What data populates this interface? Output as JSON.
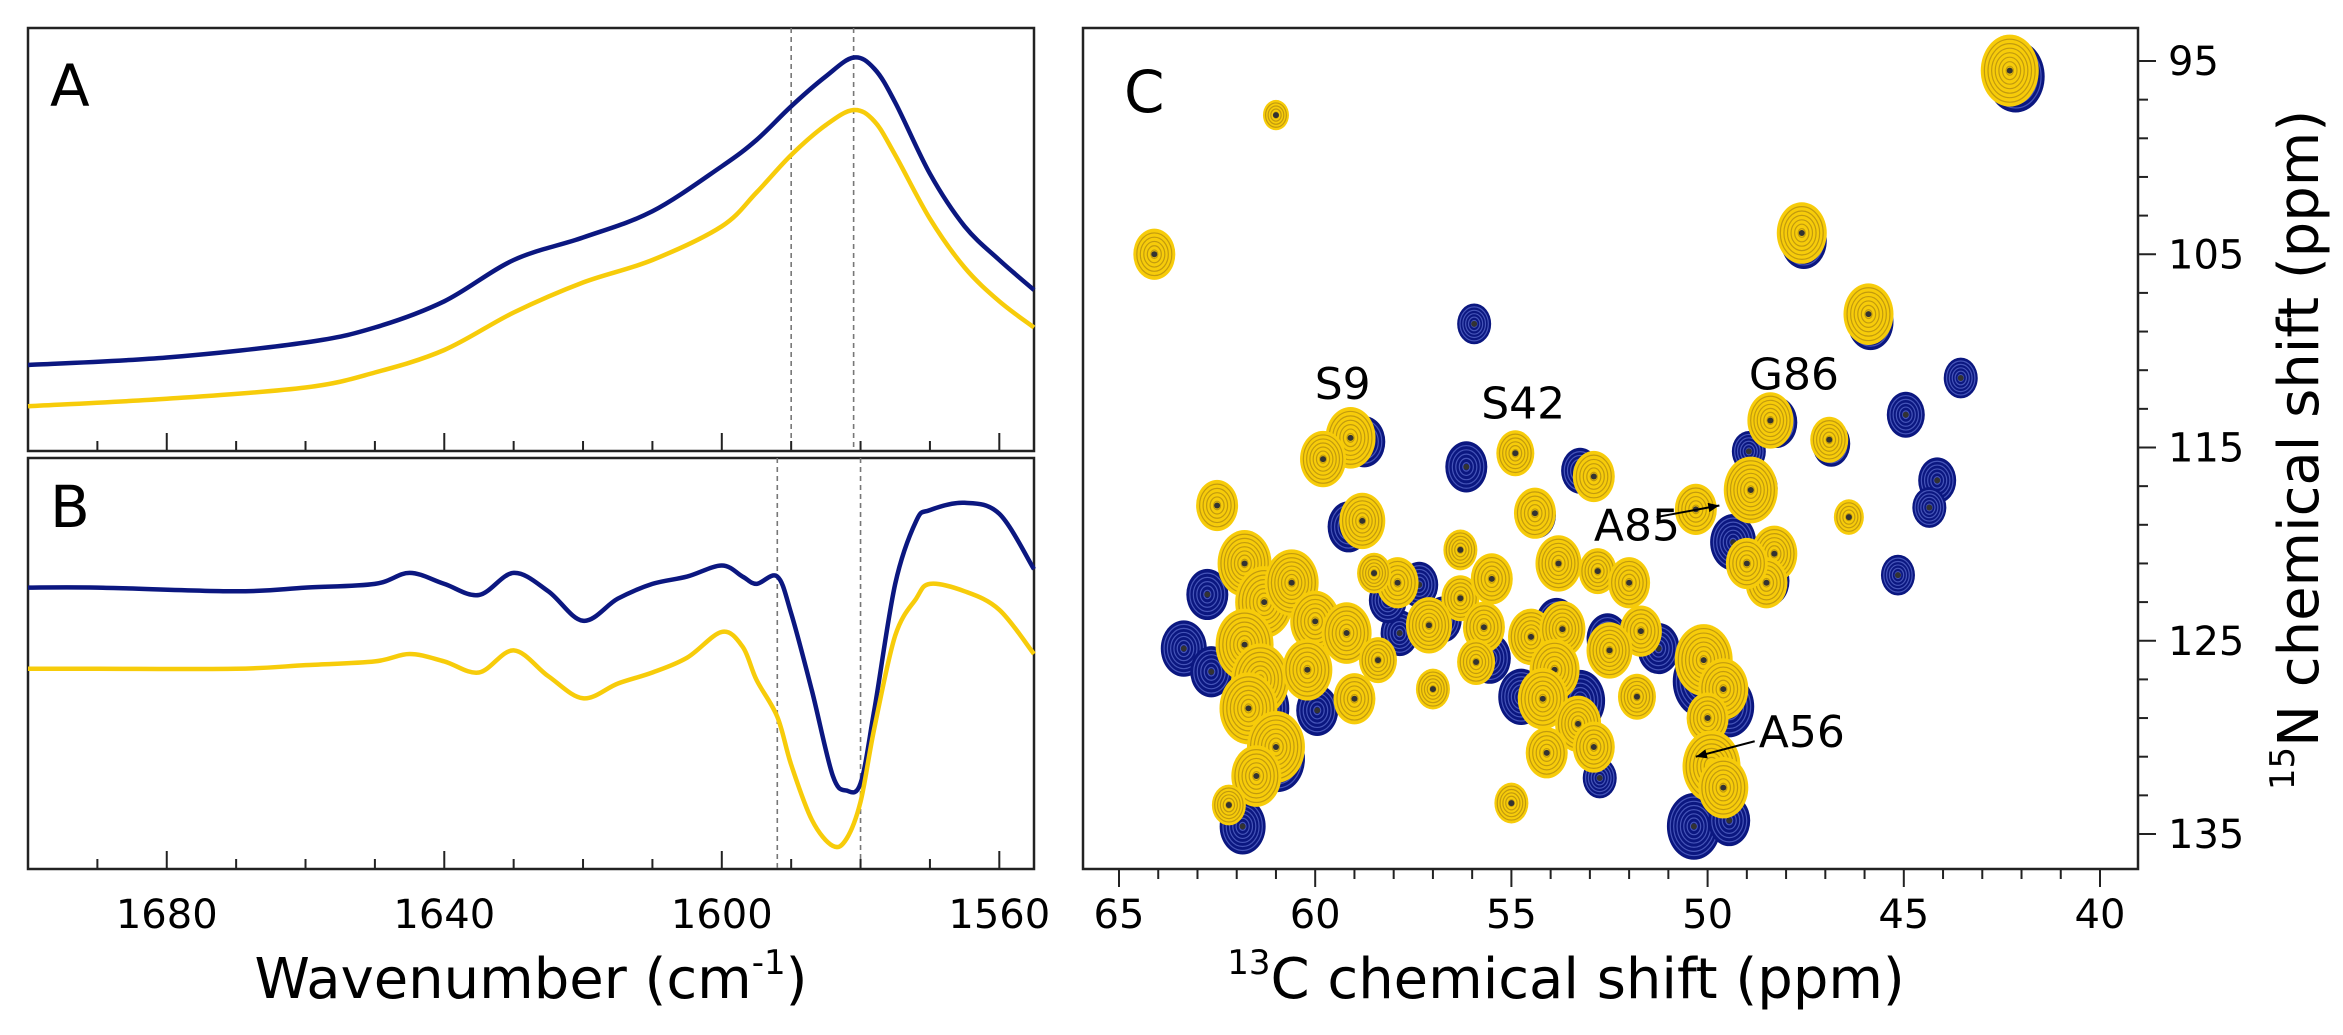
{
  "colors": {
    "navy": "#0b1780",
    "gold": "#f7cc0a",
    "guide": "#777777",
    "frame": "#222222"
  },
  "chart_data": [
    {
      "panel": "A",
      "type": "line",
      "xlabel": "Wavenumber (cm",
      "xlabel_sup": "-1",
      "xlabel_tail": ")",
      "xlim": [
        1700,
        1555
      ],
      "ylim": [
        0,
        1
      ],
      "guide_lines": [
        1590,
        1581
      ],
      "series": [
        {
          "name": "navy",
          "color": "#0b1780",
          "x": [
            1700,
            1680,
            1660,
            1650,
            1640,
            1630,
            1620,
            1610,
            1600,
            1595,
            1590,
            1585,
            1581,
            1578,
            1575,
            1570,
            1565,
            1560,
            1555
          ],
          "y": [
            0.16,
            0.18,
            0.22,
            0.26,
            0.33,
            0.44,
            0.5,
            0.57,
            0.69,
            0.76,
            0.85,
            0.93,
            0.98,
            0.95,
            0.86,
            0.67,
            0.53,
            0.44,
            0.36
          ]
        },
        {
          "name": "gold",
          "color": "#f7cc0a",
          "x": [
            1700,
            1680,
            1660,
            1650,
            1640,
            1630,
            1620,
            1610,
            1600,
            1595,
            1590,
            1585,
            1581,
            1578,
            1575,
            1570,
            1565,
            1560,
            1555
          ],
          "y": [
            0.05,
            0.07,
            0.1,
            0.14,
            0.2,
            0.3,
            0.38,
            0.44,
            0.53,
            0.62,
            0.72,
            0.8,
            0.84,
            0.81,
            0.72,
            0.55,
            0.42,
            0.33,
            0.26
          ]
        }
      ]
    },
    {
      "panel": "B",
      "type": "line",
      "xlim": [
        1700,
        1555
      ],
      "ylim": [
        0,
        1
      ],
      "xticks": [
        1680,
        1640,
        1600,
        1560
      ],
      "xtick_labels": [
        "1680",
        "1640",
        "1600",
        "1560"
      ],
      "guide_lines": [
        1592,
        1580
      ],
      "series": [
        {
          "name": "navy",
          "color": "#0b1780",
          "x": [
            1700,
            1690,
            1670,
            1660,
            1650,
            1645,
            1640,
            1635,
            1630,
            1625,
            1620,
            1615,
            1610,
            1605,
            1600,
            1597,
            1595,
            1592,
            1590,
            1587,
            1584,
            1582,
            1580,
            1578,
            1575,
            1572,
            1570,
            1565,
            1560,
            1555
          ],
          "y": [
            0.73,
            0.73,
            0.72,
            0.73,
            0.74,
            0.77,
            0.74,
            0.71,
            0.77,
            0.72,
            0.64,
            0.7,
            0.74,
            0.76,
            0.79,
            0.76,
            0.74,
            0.76,
            0.66,
            0.45,
            0.22,
            0.18,
            0.2,
            0.4,
            0.74,
            0.91,
            0.94,
            0.96,
            0.93,
            0.78
          ]
        },
        {
          "name": "gold",
          "color": "#f7cc0a",
          "x": [
            1700,
            1690,
            1670,
            1660,
            1650,
            1645,
            1640,
            1635,
            1630,
            1625,
            1620,
            1615,
            1610,
            1605,
            1600,
            1597,
            1595,
            1592,
            1590,
            1587,
            1584,
            1582,
            1580,
            1578,
            1575,
            1572,
            1570,
            1565,
            1560,
            1555
          ],
          "y": [
            0.51,
            0.51,
            0.51,
            0.52,
            0.53,
            0.55,
            0.53,
            0.5,
            0.56,
            0.49,
            0.43,
            0.47,
            0.5,
            0.54,
            0.61,
            0.57,
            0.48,
            0.38,
            0.25,
            0.1,
            0.03,
            0.05,
            0.15,
            0.35,
            0.6,
            0.7,
            0.74,
            0.72,
            0.67,
            0.55
          ]
        }
      ]
    },
    {
      "panel": "C",
      "type": "scatter",
      "xlabel": "C chemical shift (ppm)",
      "xlabel_sup": "13",
      "ylabel": "N chemical shift (ppm)",
      "ylabel_sup": "15",
      "xlim": [
        66,
        40
      ],
      "ylim": [
        94,
        137
      ],
      "xticks": [
        65,
        60,
        55,
        50,
        45,
        40
      ],
      "xtick_labels": [
        "65",
        "60",
        "55",
        "50",
        "45",
        "40"
      ],
      "yticks": [
        95,
        105,
        115,
        125,
        135
      ],
      "ytick_labels": [
        "95",
        "105",
        "115",
        "125",
        "135"
      ],
      "annotations": [
        {
          "text": "S9",
          "x": 59.3,
          "y": 112.5
        },
        {
          "text": "S42",
          "x": 54.7,
          "y": 113.5
        },
        {
          "text": "G86",
          "x": 47.8,
          "y": 112.0
        },
        {
          "text": "A85",
          "x": 51.8,
          "y": 119.8
        },
        {
          "text": "A56",
          "x": 47.6,
          "y": 130.5
        }
      ],
      "arrows": [
        {
          "x1": 51.3,
          "y1": 118.6,
          "x2": 49.7,
          "y2": 118.0
        },
        {
          "x1": 48.8,
          "y1": 130.2,
          "x2": 50.3,
          "y2": 131.0
        }
      ],
      "peaks_navy": [
        [
          42.2,
          95.7,
          1.0
        ],
        [
          47.6,
          104.2,
          0.7
        ],
        [
          45.9,
          108.4,
          0.7
        ],
        [
          56.0,
          108.5,
          0.4
        ],
        [
          43.6,
          111.3,
          0.4
        ],
        [
          45.0,
          113.2,
          0.5
        ],
        [
          48.3,
          113.6,
          0.6
        ],
        [
          46.9,
          114.7,
          0.5
        ],
        [
          49.0,
          115.1,
          0.4
        ],
        [
          58.8,
          114.6,
          0.6
        ],
        [
          56.2,
          115.9,
          0.6
        ],
        [
          53.3,
          116.1,
          0.5
        ],
        [
          44.2,
          116.6,
          0.5
        ],
        [
          44.4,
          118.0,
          0.4
        ],
        [
          48.8,
          117.0,
          0.6
        ],
        [
          49.4,
          119.8,
          0.7
        ],
        [
          54.4,
          118.4,
          0.5
        ],
        [
          59.2,
          119.0,
          0.6
        ],
        [
          45.2,
          121.5,
          0.4
        ],
        [
          62.8,
          122.5,
          0.6
        ],
        [
          57.4,
          122.0,
          0.5
        ],
        [
          56.8,
          123.8,
          0.5
        ],
        [
          53.9,
          124.0,
          0.6
        ],
        [
          52.6,
          124.8,
          0.6
        ],
        [
          51.3,
          125.3,
          0.6
        ],
        [
          55.6,
          125.8,
          0.6
        ],
        [
          54.8,
          127.8,
          0.7
        ],
        [
          53.3,
          128.0,
          0.8
        ],
        [
          50.2,
          127.0,
          1.0
        ],
        [
          49.5,
          128.3,
          0.8
        ],
        [
          63.4,
          125.3,
          0.7
        ],
        [
          62.7,
          126.5,
          0.6
        ],
        [
          61.4,
          128.4,
          0.9
        ],
        [
          61.0,
          131.0,
          0.9
        ],
        [
          60.0,
          128.5,
          0.6
        ],
        [
          61.9,
          134.5,
          0.7
        ],
        [
          50.4,
          134.5,
          0.9
        ],
        [
          49.5,
          134.2,
          0.6
        ],
        [
          52.8,
          132.0,
          0.4
        ],
        [
          57.9,
          124.5,
          0.5
        ],
        [
          58.2,
          122.8,
          0.5
        ],
        [
          48.5,
          121.8,
          0.6
        ]
      ],
      "peaks_gold": [
        [
          42.3,
          95.5,
          1.0
        ],
        [
          47.6,
          103.9,
          0.8
        ],
        [
          45.9,
          108.1,
          0.8
        ],
        [
          64.1,
          105.0,
          0.6
        ],
        [
          61.0,
          97.8,
          0.2
        ],
        [
          48.4,
          113.6,
          0.7
        ],
        [
          46.9,
          114.6,
          0.5
        ],
        [
          59.1,
          114.5,
          0.8
        ],
        [
          59.8,
          115.6,
          0.7
        ],
        [
          54.9,
          115.3,
          0.5
        ],
        [
          52.9,
          116.5,
          0.6
        ],
        [
          48.9,
          117.2,
          0.9
        ],
        [
          50.3,
          118.2,
          0.6
        ],
        [
          54.4,
          118.4,
          0.6
        ],
        [
          58.8,
          118.8,
          0.7
        ],
        [
          62.5,
          118.0,
          0.6
        ],
        [
          61.8,
          121.0,
          0.9
        ],
        [
          61.3,
          123.0,
          1.0
        ],
        [
          60.6,
          122.0,
          0.9
        ],
        [
          60.0,
          124.0,
          0.8
        ],
        [
          59.2,
          124.6,
          0.8
        ],
        [
          61.8,
          125.2,
          1.0
        ],
        [
          61.4,
          127.0,
          1.0
        ],
        [
          61.7,
          128.5,
          1.0
        ],
        [
          61.0,
          130.5,
          1.0
        ],
        [
          61.5,
          132.0,
          0.8
        ],
        [
          60.2,
          126.5,
          0.8
        ],
        [
          59.0,
          128.0,
          0.6
        ],
        [
          57.9,
          122.0,
          0.6
        ],
        [
          56.3,
          122.8,
          0.5
        ],
        [
          57.1,
          124.2,
          0.7
        ],
        [
          55.7,
          124.3,
          0.6
        ],
        [
          54.5,
          124.8,
          0.7
        ],
        [
          53.7,
          124.4,
          0.7
        ],
        [
          55.5,
          121.8,
          0.6
        ],
        [
          53.8,
          121.0,
          0.7
        ],
        [
          52.8,
          121.4,
          0.5
        ],
        [
          52.0,
          122.0,
          0.6
        ],
        [
          51.7,
          124.5,
          0.6
        ],
        [
          52.5,
          125.5,
          0.7
        ],
        [
          53.9,
          126.5,
          0.8
        ],
        [
          54.2,
          128.0,
          0.8
        ],
        [
          53.3,
          129.3,
          0.7
        ],
        [
          52.9,
          130.5,
          0.6
        ],
        [
          54.1,
          130.8,
          0.6
        ],
        [
          50.1,
          126.0,
          1.0
        ],
        [
          49.6,
          127.5,
          0.8
        ],
        [
          50.0,
          129.0,
          0.6
        ],
        [
          49.9,
          131.5,
          1.0
        ],
        [
          49.6,
          132.6,
          0.8
        ],
        [
          48.3,
          120.5,
          0.7
        ],
        [
          48.5,
          122.0,
          0.6
        ],
        [
          49.0,
          121.0,
          0.6
        ],
        [
          51.8,
          127.9,
          0.5
        ],
        [
          55.9,
          126.1,
          0.5
        ],
        [
          58.4,
          126.0,
          0.5
        ],
        [
          57.0,
          127.5,
          0.4
        ],
        [
          62.2,
          133.5,
          0.4
        ],
        [
          58.5,
          121.5,
          0.4
        ],
        [
          55.0,
          133.4,
          0.4
        ],
        [
          46.4,
          118.6,
          0.3
        ],
        [
          56.3,
          120.3,
          0.4
        ]
      ]
    }
  ],
  "panel_labels": {
    "a": "A",
    "b": "B",
    "c": "C"
  }
}
